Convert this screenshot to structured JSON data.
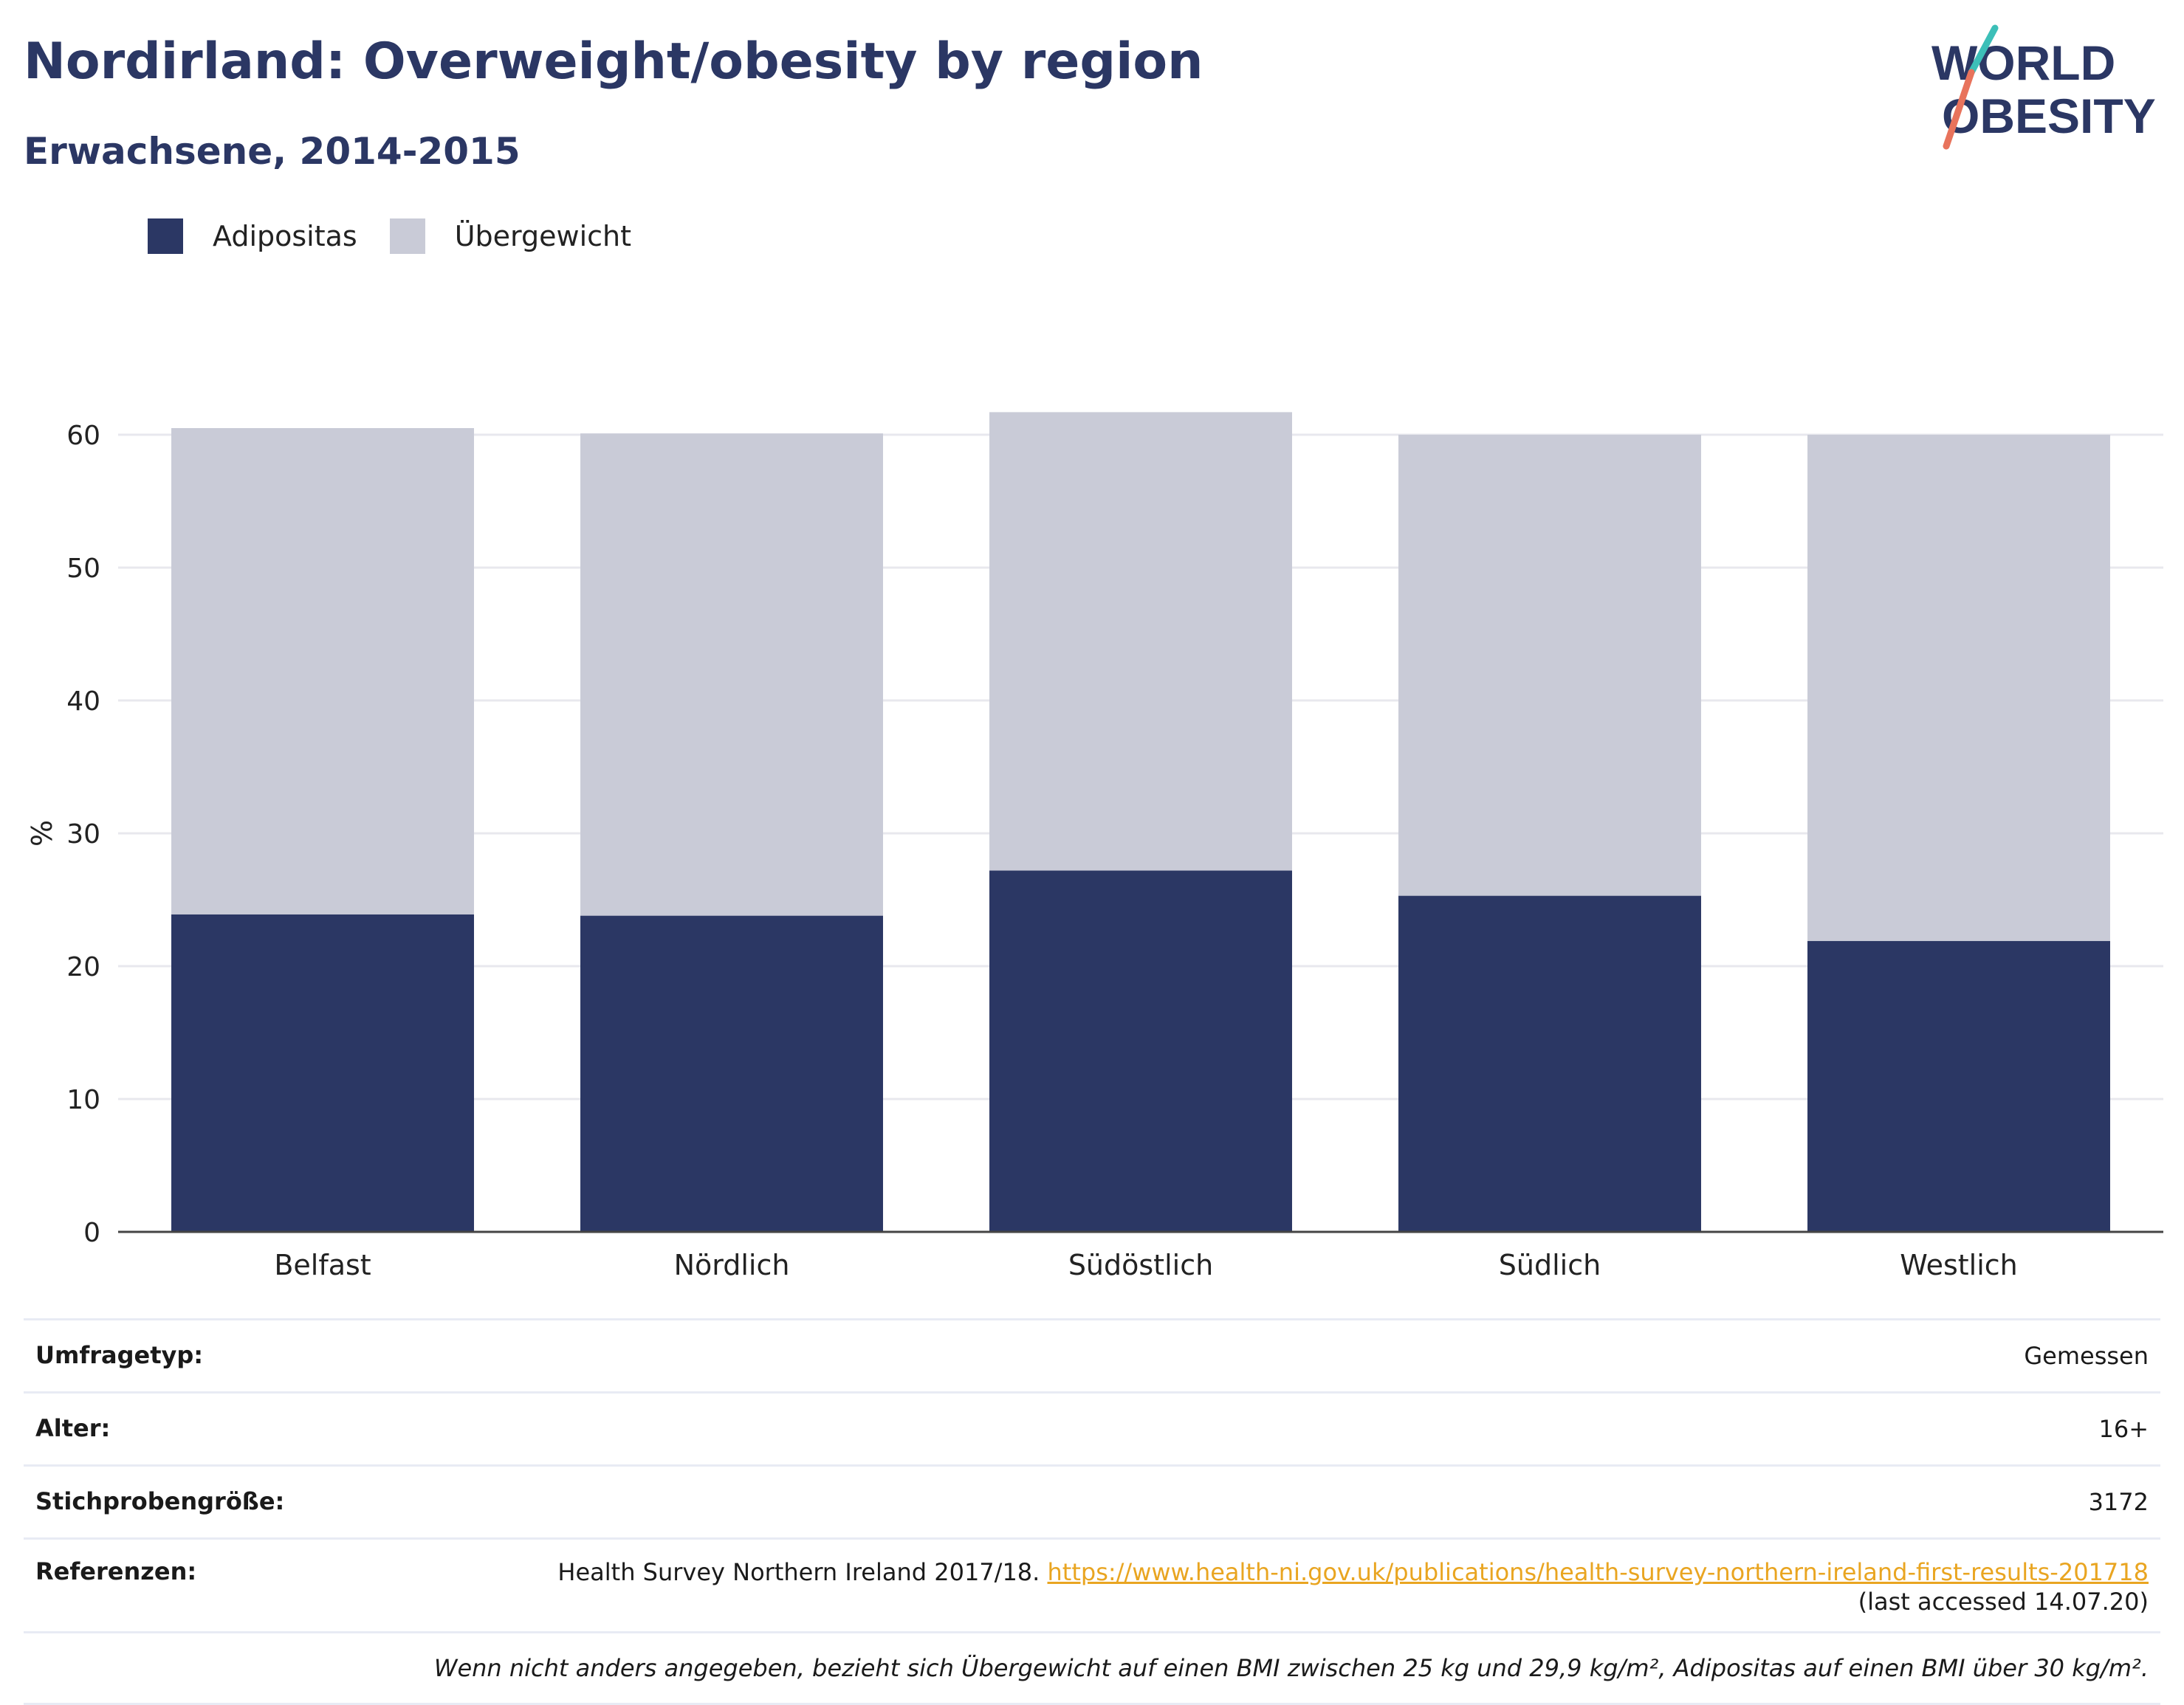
{
  "header": {
    "title": "Nordirland: Overweight/obesity by region",
    "subtitle": "Erwachsene, 2014-2015"
  },
  "logo": {
    "line1": "WORLD",
    "line2": "OBESITY"
  },
  "colors": {
    "obesity": "#2b3764",
    "overweight": "#c9cbd7",
    "link": "#e9a521",
    "title": "#2b3764"
  },
  "chart_data": {
    "type": "bar",
    "stacked": true,
    "categories": [
      "Belfast",
      "Nördlich",
      "Südöstlich",
      "Südlich",
      "Westlich"
    ],
    "series": [
      {
        "name": "Adipositas",
        "values": [
          23.9,
          23.8,
          27.2,
          25.3,
          21.9
        ]
      },
      {
        "name": "Übergewicht",
        "values": [
          36.6,
          36.3,
          34.5,
          34.7,
          38.1
        ]
      }
    ],
    "ylabel": "%",
    "yticks": [
      0,
      10,
      20,
      30,
      40,
      50,
      60
    ],
    "ylim": [
      0,
      62
    ],
    "grid": true,
    "legend": "top-left"
  },
  "info": {
    "survey_type_label": "Umfragetyp:",
    "survey_type_value": "Gemessen",
    "age_label": "Alter:",
    "age_value": "16+",
    "sample_label": "Stichprobengröße:",
    "sample_value": "3172",
    "refs_label": "Referenzen:",
    "refs_text": "Health Survey Northern Ireland 2017/18. ",
    "refs_link": "https://www.health-ni.gov.uk/publications/health-survey-northern-ireland-first-results-201718",
    "refs_suffix": "(last accessed 14.07.20)",
    "note": "Wenn nicht anders angegeben, bezieht sich Übergewicht auf einen BMI zwischen 25 kg und 29,9 kg/m², Adipositas auf einen BMI über 30 kg/m²."
  }
}
